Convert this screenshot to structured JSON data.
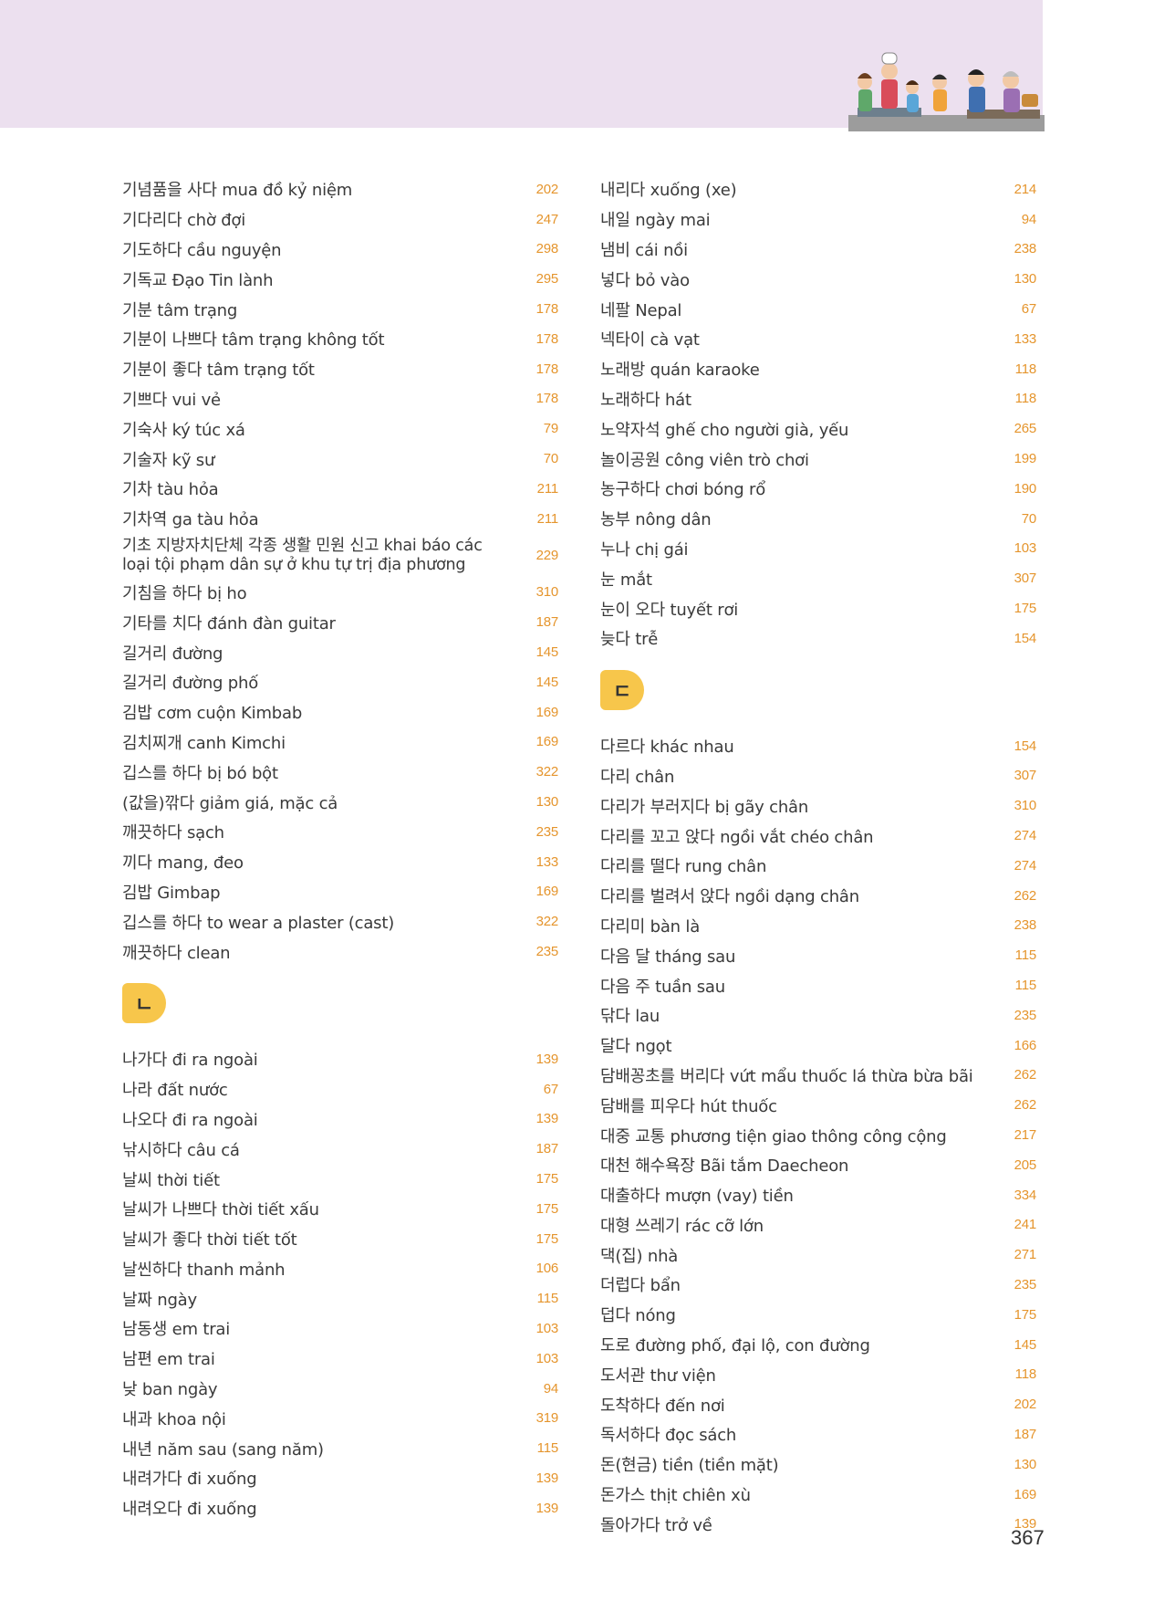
{
  "left_column": {
    "group1": [
      {
        "term": "기념품을 사다 mua đồ kỷ niệm",
        "page": "202"
      },
      {
        "term": "기다리다 chờ đợi",
        "page": "247"
      },
      {
        "term": "기도하다 cầu nguyện",
        "page": "298"
      },
      {
        "term": "기독교 Đạo Tin lành",
        "page": "295"
      },
      {
        "term": "기분 tâm trạng",
        "page": "178"
      },
      {
        "term": "기분이 나쁘다 tâm trạng không tốt",
        "page": "178"
      },
      {
        "term": "기분이 좋다 tâm trạng tốt",
        "page": "178"
      },
      {
        "term": "기쁘다 vui vẻ",
        "page": "178"
      },
      {
        "term": "기숙사 ký túc xá",
        "page": "79"
      },
      {
        "term": "기술자 kỹ sư",
        "page": "70"
      },
      {
        "term": "기차 tàu hỏa",
        "page": "211"
      },
      {
        "term": "기차역 ga tàu hỏa",
        "page": "211"
      },
      {
        "term": "기초 지방자치단체 각종 생활 민원 신고 khai báo các loại tội phạm dân sự ở khu tự trị địa phương",
        "page": "229",
        "tall": true
      },
      {
        "term": "기침을 하다 bị ho",
        "page": "310"
      },
      {
        "term": "기타를 치다 đánh đàn guitar",
        "page": "187"
      },
      {
        "term": "길거리 đường",
        "page": "145"
      },
      {
        "term": "길거리 đường phố",
        "page": "145"
      },
      {
        "term": "김밥 cơm cuộn Kimbab",
        "page": "169"
      },
      {
        "term": "김치찌개 canh Kimchi",
        "page": "169"
      },
      {
        "term": "깁스를 하다 bị bó bột",
        "page": "322"
      },
      {
        "term": "(값을)깎다 giảm giá, mặc cả",
        "page": "130"
      },
      {
        "term": "깨끗하다 sạch",
        "page": "235"
      },
      {
        "term": "끼다 mang, đeo",
        "page": "133"
      },
      {
        "term": "김밥 Gimbap",
        "page": "169"
      },
      {
        "term": "깁스를 하다 to wear a plaster (cast)",
        "page": "322"
      },
      {
        "term": "깨끗하다 clean",
        "page": "235"
      }
    ],
    "marker": "ㄴ",
    "group2": [
      {
        "term": "나가다 đi ra ngoài",
        "page": "139"
      },
      {
        "term": "나라  đất nước",
        "page": "67"
      },
      {
        "term": "나오다 đi ra ngoài",
        "page": "139"
      },
      {
        "term": "낚시하다 câu cá",
        "page": "187"
      },
      {
        "term": "날씨 thời tiết",
        "page": "175"
      },
      {
        "term": "날씨가 나쁘다 thời tiết xấu",
        "page": "175"
      },
      {
        "term": "날씨가 좋다 thời tiết tốt",
        "page": "175"
      },
      {
        "term": "날씬하다 thanh mảnh",
        "page": "106"
      },
      {
        "term": "날짜 ngày",
        "page": "115"
      },
      {
        "term": "남동생 em trai",
        "page": "103"
      },
      {
        "term": "남편 em trai",
        "page": "103"
      },
      {
        "term": "낮 ban ngày",
        "page": "94"
      },
      {
        "term": "내과 khoa nội",
        "page": "319"
      },
      {
        "term": "내년 năm sau (sang năm)",
        "page": "115"
      },
      {
        "term": "내려가다 đi xuống",
        "page": "139"
      },
      {
        "term": "내려오다 đi xuống",
        "page": "139"
      }
    ]
  },
  "right_column": {
    "group1": [
      {
        "term": "내리다 xuống (xe)",
        "page": "214"
      },
      {
        "term": "내일 ngày mai",
        "page": "94"
      },
      {
        "term": "냄비 cái nồi",
        "page": "238"
      },
      {
        "term": "넣다 bỏ vào",
        "page": "130"
      },
      {
        "term": "네팔 Nepal",
        "page": "67"
      },
      {
        "term": "넥타이 cà vạt",
        "page": "133"
      },
      {
        "term": "노래방 quán karaoke",
        "page": "118"
      },
      {
        "term": "노래하다 hát",
        "page": "118"
      },
      {
        "term": "노약자석 ghế cho người già, yếu",
        "page": "265"
      },
      {
        "term": "놀이공원 công viên trò chơi",
        "page": "199"
      },
      {
        "term": "농구하다 chơi bóng rổ",
        "page": "190"
      },
      {
        "term": "농부 nông dân",
        "page": "70"
      },
      {
        "term": "누나 chị gái",
        "page": "103"
      },
      {
        "term": "눈 mắt",
        "page": "307"
      },
      {
        "term": "눈이 오다 tuyết rơi",
        "page": "175"
      },
      {
        "term": "늦다 trễ",
        "page": "154"
      }
    ],
    "marker": "ㄷ",
    "group2": [
      {
        "term": "다르다 khác nhau",
        "page": "154"
      },
      {
        "term": "다리 chân",
        "page": "307"
      },
      {
        "term": "다리가 부러지다 bị gãy chân",
        "page": "310"
      },
      {
        "term": "다리를 꼬고 앉다 ngồi vắt chéo chân",
        "page": "274"
      },
      {
        "term": "다리를 떨다 rung chân",
        "page": "274"
      },
      {
        "term": "다리를 벌려서 앉다 ngồi dạng chân",
        "page": "262"
      },
      {
        "term": "다리미 bàn là",
        "page": "238"
      },
      {
        "term": "다음 달 tháng sau",
        "page": "115"
      },
      {
        "term": "다음 주 tuần sau",
        "page": "115"
      },
      {
        "term": "닦다 lau",
        "page": "235"
      },
      {
        "term": "달다 ngọt",
        "page": "166"
      },
      {
        "term": "담배꽁초를 버리다 vứt mẩu thuốc lá thừa bừa bãi",
        "page": "262"
      },
      {
        "term": "담배를 피우다 hút thuốc",
        "page": "262"
      },
      {
        "term": "대중 교통 phương tiện giao thông công cộng",
        "page": "217"
      },
      {
        "term": "대천 해수욕장 Bãi tắm Daecheon",
        "page": "205"
      },
      {
        "term": "대출하다 mượn (vay) tiền",
        "page": "334"
      },
      {
        "term": "대형 쓰레기 rác cỡ lớn",
        "page": "241"
      },
      {
        "term": "댁(집) nhà",
        "page": "271"
      },
      {
        "term": "더럽다 bẩn",
        "page": "235"
      },
      {
        "term": "덥다 nóng",
        "page": "175"
      },
      {
        "term": "도로 đường phố, đại lộ, con đường",
        "page": "145"
      },
      {
        "term": "도서관 thư viện",
        "page": "118"
      },
      {
        "term": "도착하다 đến nơi",
        "page": "202"
      },
      {
        "term": "독서하다 đọc sách",
        "page": "187"
      },
      {
        "term": "돈(현금) tiền (tiền mặt)",
        "page": "130"
      },
      {
        "term": "돈가스 thịt chiên xù",
        "page": "169"
      },
      {
        "term": "돌아가다 trở về",
        "page": "139"
      }
    ]
  },
  "page_number": "367",
  "colors": {
    "banner": "#ece0ef",
    "marker": "#f7c64b",
    "page_ref": "#e5952d"
  }
}
